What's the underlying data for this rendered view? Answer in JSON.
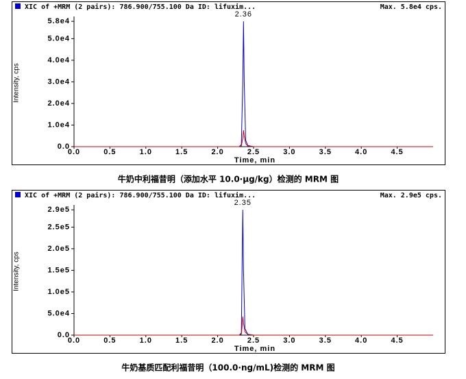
{
  "chart_data": [
    {
      "type": "line",
      "header": "XIC of +MRM (2 pairs): 786.900/755.100 Da ID: lifuxim...",
      "max_label": "Max. 5.8e4 cps.",
      "peak_label": "2.36",
      "x_label": "Time, min",
      "y_label": "Intensity, cps",
      "caption": "牛奶中利福昔明（添加水平 10.0·μg/kg）检测的 MRM 图",
      "x": [
        0,
        2.0,
        2.3,
        2.33,
        2.35,
        2.36,
        2.37,
        2.39,
        2.42,
        2.5,
        5.0
      ],
      "series": [
        {
          "color": "#0000cc",
          "values": [
            0,
            0,
            0,
            1000,
            30000,
            58000,
            30000,
            3000,
            500,
            0,
            0
          ]
        },
        {
          "color": "#cc0000",
          "values": [
            0,
            0,
            0,
            300,
            4000,
            7600,
            5000,
            1500,
            300,
            0,
            0
          ]
        }
      ],
      "xlim": [
        0,
        5.0
      ],
      "xticks": [
        {
          "value": 0,
          "label": "0.0"
        },
        0.5,
        {
          "value": 1,
          "label": "1.0"
        },
        1.5,
        {
          "value": 2,
          "label": "2.0"
        },
        2.5,
        {
          "value": 3,
          "label": "3.0"
        },
        3.5,
        {
          "value": 4,
          "label": "4.0"
        },
        4.5
      ],
      "ylim": [
        0,
        59000
      ],
      "yticks": [
        {
          "value": 0,
          "label": "0.0"
        },
        {
          "value": 10000,
          "label": "1.0e4"
        },
        {
          "value": 20000,
          "label": "2.0e4"
        },
        {
          "value": 30000,
          "label": "3.0e4"
        },
        {
          "value": 40000,
          "label": "4.0e4"
        },
        {
          "value": 50000,
          "label": "5.0e4"
        },
        {
          "value": 58000,
          "label": "5.8e4"
        }
      ]
    },
    {
      "type": "line",
      "header": "XIC of +MRM (2 pairs): 786.900/755.100 Da ID: lifuxim...",
      "max_label": "Max. 2.9e5 cps.",
      "peak_label": "2.35",
      "x_label": "Time, min",
      "y_label": "Intensity, cps",
      "caption": "牛奶基质匹配利福昔明（100.0·ng/mL)检测的 MRM 图",
      "x": [
        0,
        2.0,
        2.3,
        2.33,
        2.34,
        2.35,
        2.36,
        2.38,
        2.42,
        2.5,
        5.0
      ],
      "series": [
        {
          "color": "#0000cc",
          "values": [
            0,
            0,
            0,
            5000,
            150000,
            290000,
            150000,
            15000,
            2000,
            0,
            0
          ]
        },
        {
          "color": "#cc0000",
          "values": [
            0,
            0,
            0,
            2000,
            20000,
            43000,
            28000,
            8000,
            1500,
            0,
            0
          ]
        }
      ],
      "xlim": [
        0,
        5.0
      ],
      "xticks": [
        {
          "value": 0,
          "label": "0.0"
        },
        0.5,
        {
          "value": 1,
          "label": "1.0"
        },
        1.5,
        {
          "value": 2,
          "label": "2.0"
        },
        2.5,
        {
          "value": 3,
          "label": "3.0"
        },
        3.5,
        {
          "value": 4,
          "label": "4.0"
        },
        4.5
      ],
      "ylim": [
        0,
        295000
      ],
      "yticks": [
        {
          "value": 0,
          "label": "0.0"
        },
        {
          "value": 50000,
          "label": "5.0e4"
        },
        {
          "value": 100000,
          "label": "1.0e5"
        },
        {
          "value": 150000,
          "label": "1.5e5"
        },
        {
          "value": 200000,
          "label": "2.0e5"
        },
        {
          "value": 250000,
          "label": "2.5e5"
        },
        {
          "value": 290000,
          "label": "2.9e5"
        }
      ]
    }
  ]
}
